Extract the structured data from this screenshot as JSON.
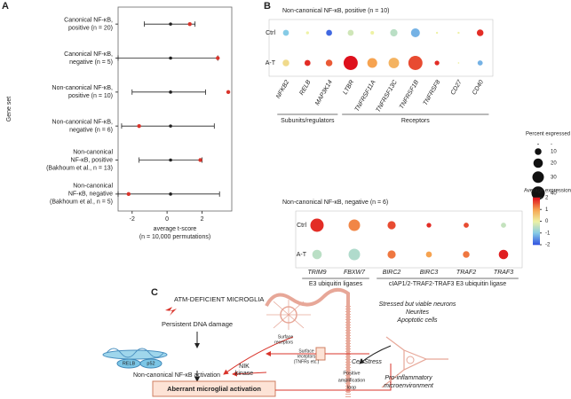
{
  "panels": [
    "A",
    "B",
    "C"
  ],
  "chart_data": [
    {
      "type": "dotwhisker",
      "ylabel": "Gene set",
      "xlabel": [
        "average t-score",
        "(n = 10,000 permutations)"
      ],
      "categories": [
        [
          "Canonical NF-κB,",
          "positive (n = 20)"
        ],
        [
          "Canonical NF-κB,",
          "negative (n = 5)"
        ],
        [
          "Non-canonical NF-κB,",
          "positive (n = 10)"
        ],
        [
          "Non-canonical NF-κB,",
          "negative (n = 6)"
        ],
        [
          "Non-canonical",
          "NF-κB, positive",
          "(Bakhoum et al., n = 13)"
        ],
        [
          "Non-canonical",
          "NF-κB, negative",
          "(Bakhoum et al., n = 5)"
        ]
      ],
      "low": [
        -1.3,
        -2.8,
        -2.0,
        -2.6,
        -1.6,
        -2.8
      ],
      "high": [
        1.6,
        2.9,
        2.2,
        2.7,
        2.0,
        3.0
      ],
      "null_mean": [
        0.2,
        0.2,
        0.2,
        0.2,
        0.2,
        0.2
      ],
      "observed": [
        1.3,
        2.9,
        3.5,
        -1.6,
        1.9,
        -2.2
      ],
      "observed_color": "#d9342b",
      "xlim": [
        -2.8,
        3.7
      ],
      "xticks": [
        -2,
        0,
        2
      ]
    },
    {
      "type": "dotplot",
      "title": "Non-canonical NF-κB, positive (n = 10)",
      "categories": [
        "NFKB2",
        "RELB",
        "MAP3K14",
        "LTBR",
        "TNFRSF11A",
        "TNFRSF13C",
        "TNFRSF1B",
        "TNFRSF8",
        "CD27",
        "CD40"
      ],
      "rows": [
        "Ctrl",
        "A-T"
      ],
      "size": [
        [
          8,
          2,
          8,
          8,
          3,
          12,
          18,
          1,
          1,
          10
        ],
        [
          10,
          8,
          10,
          45,
          22,
          25,
          45,
          5,
          0.5,
          6
        ]
      ],
      "color": [
        [
          -1,
          0,
          -1.8,
          -0.3,
          0,
          -0.5,
          -1.2,
          0,
          0,
          1.8
        ],
        [
          0.3,
          1.8,
          1.5,
          2,
          1,
          0.8,
          1.6,
          1.8,
          0,
          -1.2
        ]
      ],
      "groups": [
        {
          "label": "Subunits/regulators",
          "from": 0,
          "to": 2
        },
        {
          "label": "Receptors",
          "from": 3,
          "to": 9
        }
      ],
      "size_title": "Percent expressed",
      "size_ticks": [
        {
          "value": 0,
          "label": "-"
        },
        10,
        20,
        30,
        40
      ],
      "color_title": "Average expression",
      "clim": [
        -2,
        2
      ],
      "color_ticks": [
        2,
        1,
        0,
        -1,
        -2
      ],
      "colorscale": [
        "#2f4fe0",
        "#86cbe6",
        "#eef2a4",
        "#f6a350",
        "#de101c"
      ]
    },
    {
      "type": "dotplot",
      "title": "Non-canonical NF-κB, negative (n = 6)",
      "categories": [
        "TRIM9",
        "FBXW7",
        "BIRC2",
        "BIRC3",
        "TRAF2",
        "TRAF3"
      ],
      "rows": [
        "Ctrl",
        "A-T"
      ],
      "size": [
        [
          40,
          30,
          15,
          5,
          6,
          6
        ],
        [
          20,
          30,
          15,
          8,
          10,
          20
        ]
      ],
      "color": [
        [
          1.8,
          1.2,
          1.6,
          1.8,
          1.6,
          -0.4
        ],
        [
          -0.5,
          -0.6,
          1.3,
          1,
          1.3,
          1.9
        ]
      ],
      "groups": [
        {
          "label": "E3 ubiquitin ligases",
          "from": 0,
          "to": 1
        },
        {
          "label": "cIAP1/2-TRAF2-TRAF3 E3 ubiquitin ligase",
          "from": 2,
          "to": 5
        }
      ]
    }
  ],
  "diagram": {
    "microglia": "ATM-DEFICIENT MICROGLIA",
    "damage": "Persistent DNA damage",
    "relb": "RELB",
    "p52": "p52",
    "activation": "Non-canonical NF-κB activation",
    "aberrant": "Aberrant microglial activation",
    "surface1": [
      "Surface",
      "receptors"
    ],
    "surface2": [
      "Surface",
      "receptors",
      "(TNFRs etc.)"
    ],
    "nik": [
      "NIK",
      "kinase"
    ],
    "stress": "Cell Stress",
    "loop": [
      "Positive",
      "amplification",
      "loop"
    ],
    "neurons": [
      "Stressed but viable neurons",
      "Neurites",
      "Apoptotic cells"
    ],
    "micro_env": [
      "Pro-inflammatory",
      "microenvironment"
    ]
  }
}
